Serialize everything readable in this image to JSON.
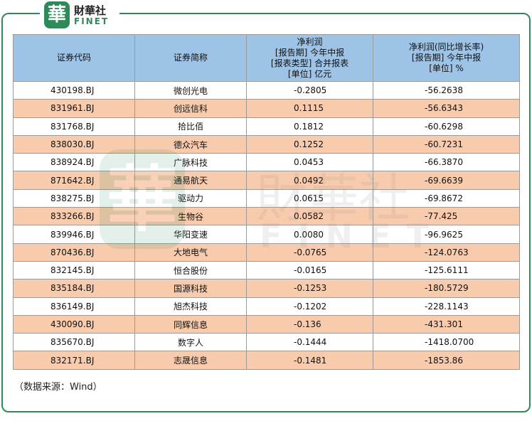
{
  "logo": {
    "mark": "華",
    "name": "財華社",
    "en": "FINET"
  },
  "table": {
    "header": [
      [
        "证券代码"
      ],
      [
        "证券简称"
      ],
      [
        "净利润",
        "[报告期] 今年中报",
        "[报表类型] 合并报表",
        "[单位] 亿元"
      ],
      [
        "净利润(同比增长率)",
        "[报告期] 今年中报",
        "[单位] %"
      ]
    ],
    "rows": [
      [
        "430198.BJ",
        "微创光电",
        "-0.2805",
        "-56.2638"
      ],
      [
        "831961.BJ",
        "创远信科",
        "0.1115",
        "-56.6343"
      ],
      [
        "831768.BJ",
        "拾比佰",
        "0.1812",
        "-60.6298"
      ],
      [
        "838030.BJ",
        "德众汽车",
        "0.1252",
        "-60.7231"
      ],
      [
        "838924.BJ",
        "广脉科技",
        "0.0453",
        "-66.3870"
      ],
      [
        "871642.BJ",
        "通易航天",
        "0.0492",
        "-69.6639"
      ],
      [
        "838275.BJ",
        "驱动力",
        "0.0615",
        "-69.8672"
      ],
      [
        "833266.BJ",
        "生物谷",
        "0.0582",
        "-77.425"
      ],
      [
        "839946.BJ",
        "华阳变速",
        "0.0080",
        "-96.9625"
      ],
      [
        "870436.BJ",
        "大地电气",
        "-0.0765",
        "-124.0763"
      ],
      [
        "832145.BJ",
        "恒合股份",
        "-0.0165",
        "-125.6111"
      ],
      [
        "835184.BJ",
        "国源科技",
        "-0.1253",
        "-180.5729"
      ],
      [
        "836149.BJ",
        "旭杰科技",
        "-0.1202",
        "-228.1143"
      ],
      [
        "430090.BJ",
        "同辉信息",
        "-0.136",
        "-431.301"
      ],
      [
        "835670.BJ",
        "数字人",
        "-0.1444",
        "-1418.0700"
      ],
      [
        "832171.BJ",
        "志晟信息",
        "-0.1481",
        "-1853.86"
      ]
    ]
  },
  "source": "（数据来源：Wind）"
}
